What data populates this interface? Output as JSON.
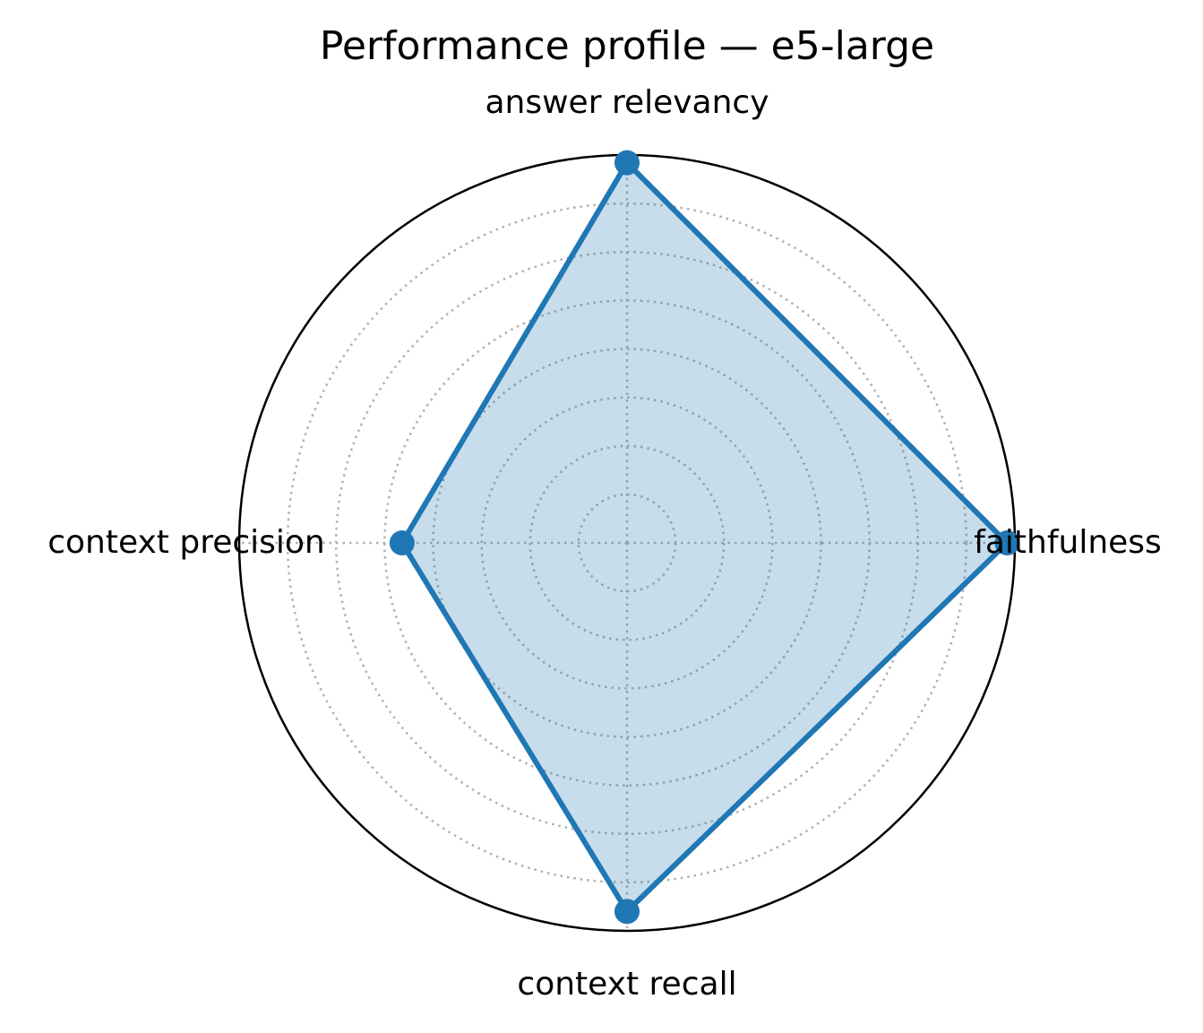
{
  "chart_data": {
    "type": "radar",
    "title": "Performance profile — e5-large",
    "axes": [
      "faithfulness",
      "answer relevancy",
      "context precision",
      "context recall"
    ],
    "series": [
      {
        "values": [
          0.98,
          0.98,
          0.58,
          0.95
        ],
        "color": "#1f77b4"
      }
    ],
    "rlim": [
      0,
      1
    ],
    "grid": true,
    "gridlines": [
      0.125,
      0.25,
      0.375,
      0.5,
      0.625,
      0.75,
      0.875
    ],
    "legend": false
  }
}
